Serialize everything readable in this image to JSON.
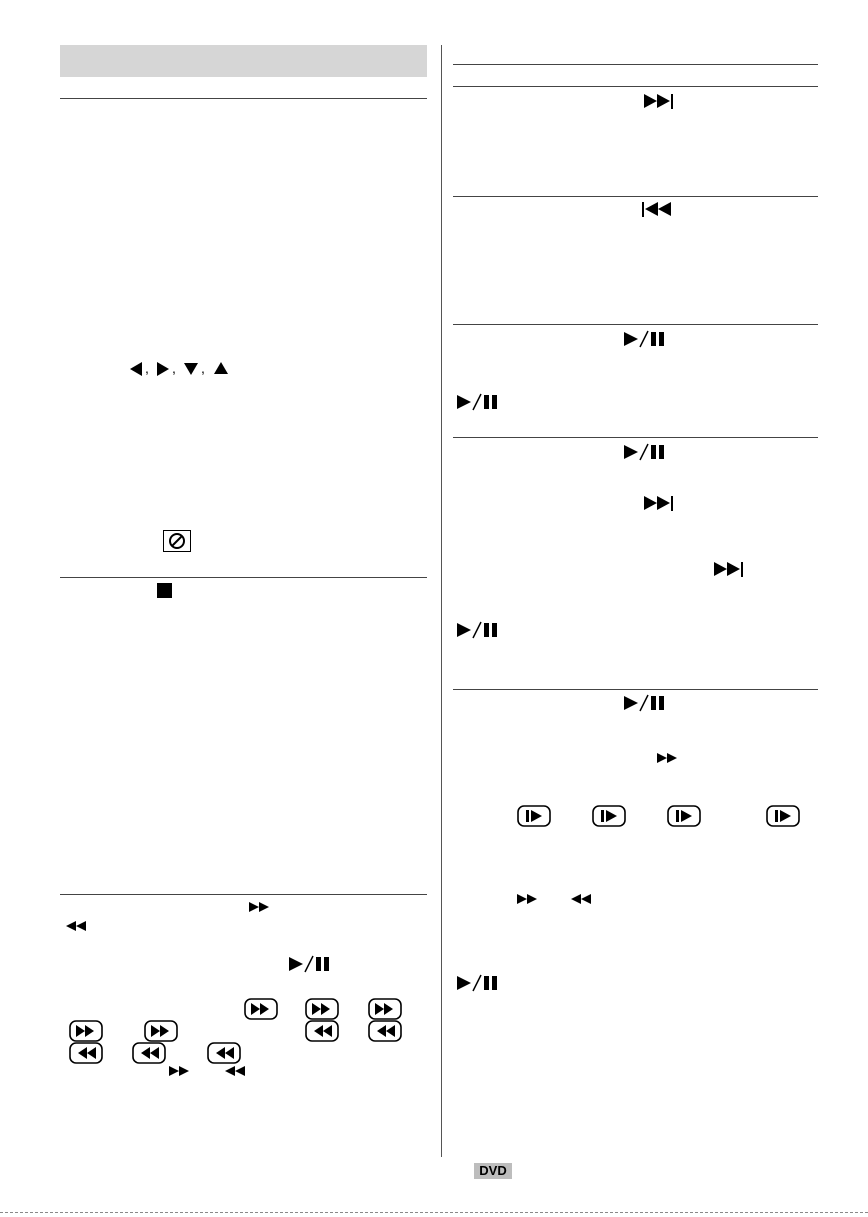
{
  "footer": {
    "badge": "DVD"
  },
  "colors": {
    "header_bar": "#d6d6d6",
    "rule": "#444444",
    "badge": "#bdbdbd"
  },
  "icons": {
    "left_column": [
      "arrow-left-icon",
      "arrow-right-icon",
      "arrow-down-icon",
      "arrow-up-icon",
      "prohibited-icon",
      "stop-icon",
      "fast-forward-icon",
      "rewind-icon",
      "play-pause-icon",
      "fast-forward-button-icon",
      "rewind-button-icon"
    ],
    "right_column": [
      "next-track-icon",
      "previous-track-icon",
      "play-pause-icon",
      "fast-forward-icon",
      "slow-forward-button-icon",
      "rewind-icon"
    ]
  }
}
